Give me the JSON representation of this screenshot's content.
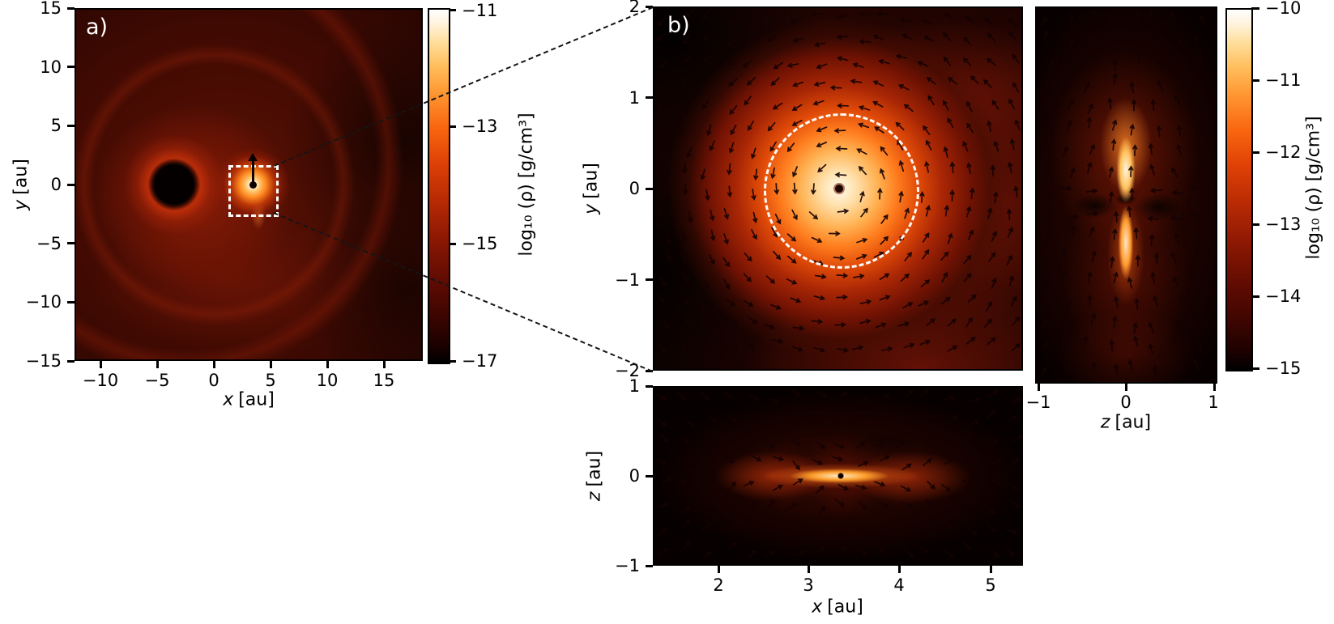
{
  "figure": {
    "panel_a": {
      "tag": "a)",
      "xlabel": {
        "var": "x",
        "unit": "[au]"
      },
      "ylabel": {
        "var": "y",
        "unit": "[au]"
      },
      "xticks": [
        "−10",
        "−5",
        "0",
        "5",
        "10",
        "15"
      ],
      "yticks": [
        "15",
        "10",
        "5",
        "0",
        "−5",
        "−10",
        "−15"
      ],
      "colorbar": {
        "ticks": [
          "−11",
          "−13",
          "−15",
          "−17"
        ],
        "label": "log₁₀ (ρ) [g/cm³]"
      }
    },
    "panel_b": {
      "tag": "b)",
      "ylabel": {
        "var": "y",
        "unit": "[au]"
      },
      "yticks": [
        "2",
        "1",
        "0",
        "−1",
        "−2"
      ]
    },
    "panel_xz": {
      "xlabel": {
        "var": "x",
        "unit": "[au]"
      },
      "ylabel": {
        "var": "z",
        "unit": "[au]"
      },
      "xticks": [
        "2",
        "3",
        "4",
        "5"
      ],
      "yticks": [
        "1",
        "0",
        "−1"
      ]
    },
    "panel_zy": {
      "xlabel": {
        "var": "z",
        "unit": "[au]"
      },
      "xticks": [
        "−1",
        "0",
        "1"
      ],
      "colorbar": {
        "ticks": [
          "−10",
          "−11",
          "−12",
          "−13",
          "−14",
          "−15"
        ],
        "label": "log₁₀ (ρ) [g/cm³]"
      }
    }
  },
  "chart_data": [
    {
      "type": "heatmap",
      "id": "a",
      "description": "Face-on log density map of a protoplanetary disk with spiral wakes, a dark gap/hole at the star and a bright point-source planet",
      "xlabel": "x [au]",
      "ylabel": "y [au]",
      "xlim": [
        -12.3,
        18.4
      ],
      "ylim": [
        -15,
        15
      ],
      "xticks": [
        -10,
        -5,
        0,
        5,
        10,
        15
      ],
      "yticks": [
        15,
        10,
        5,
        0,
        -5,
        -10,
        -15
      ],
      "colorbar": {
        "label": "log10(rho) [g/cm^3]",
        "ticks": [
          -11,
          -13,
          -15,
          -17
        ],
        "range": [
          -17,
          -11
        ],
        "colormap": "black-red-orange-white (heat)"
      },
      "features": {
        "star_cavity": {
          "x": -3.5,
          "y": 0,
          "radius_au": 1.8
        },
        "planet_bright_spot": {
          "x": 3.4,
          "y": 0
        },
        "planet_velocity_arrow": "black arrow pointing in +y from planet",
        "zoom_box": {
          "x_range": [
            1.3,
            5.3
          ],
          "y_range": [
            -2.3,
            1.7
          ],
          "style": "white dashed"
        },
        "spiral_arms": true,
        "dark_crescent_right": true
      }
    },
    {
      "type": "heatmap",
      "id": "b",
      "description": "Zoom on the circumplanetary disk in the x-y plane with velocity vectors rotating counterclockwise around the planet",
      "xlabel": "(shared) x [au]",
      "ylabel": "y [au]",
      "xlim": [
        1.3,
        5.4
      ],
      "ylim": [
        -2,
        2
      ],
      "yticks": [
        2,
        1,
        0,
        -1,
        -2
      ],
      "colorbar": {
        "label": "log10(rho) [g/cm^3]",
        "ticks": [
          -10,
          -11,
          -12,
          -13,
          -14,
          -15
        ],
        "range": [
          -15,
          -10
        ]
      },
      "features": {
        "planet": {
          "x": 3.35,
          "y": 0
        },
        "cpd_circle": {
          "x": 3.35,
          "y": 0,
          "radius_au": 0.83,
          "style": "white dashed"
        },
        "velocity_field": "counterclockwise rotation around planet",
        "bright_core": "white saturated center with dark planet dot"
      }
    },
    {
      "type": "heatmap",
      "id": "xz",
      "description": "Edge-on x-z slice through the planet showing a flared circumplanetary disk pinched at the planet",
      "xlabel": "x [au]",
      "ylabel": "z [au]",
      "xlim": [
        1.3,
        5.4
      ],
      "ylim": [
        -1,
        1
      ],
      "xticks": [
        2,
        3,
        4,
        5
      ],
      "yticks": [
        1,
        0,
        -1
      ],
      "features": {
        "planet": {
          "x": 3.35,
          "z": 0
        },
        "midplane_bright_wedges": true,
        "velocity_field": "flow converging to midplane upstream, diverging downstream"
      }
    },
    {
      "type": "heatmap",
      "id": "zy",
      "description": "Vertical z-y slice through the planet showing a pinched vertical accretion column (hourglass) above and below the planet",
      "xlabel": "z [au]",
      "ylabel": "y [au]",
      "xlim": [
        -1.04,
        1.04
      ],
      "ylim": [
        -2,
        2
      ],
      "xticks": [
        -1,
        0,
        1
      ],
      "features": {
        "planet": {
          "z": 0,
          "y": 0
        },
        "vertical_bright_columns": true,
        "dark_midplane_wings": true,
        "velocity_field": "mostly vertical, converging on column"
      }
    }
  ]
}
